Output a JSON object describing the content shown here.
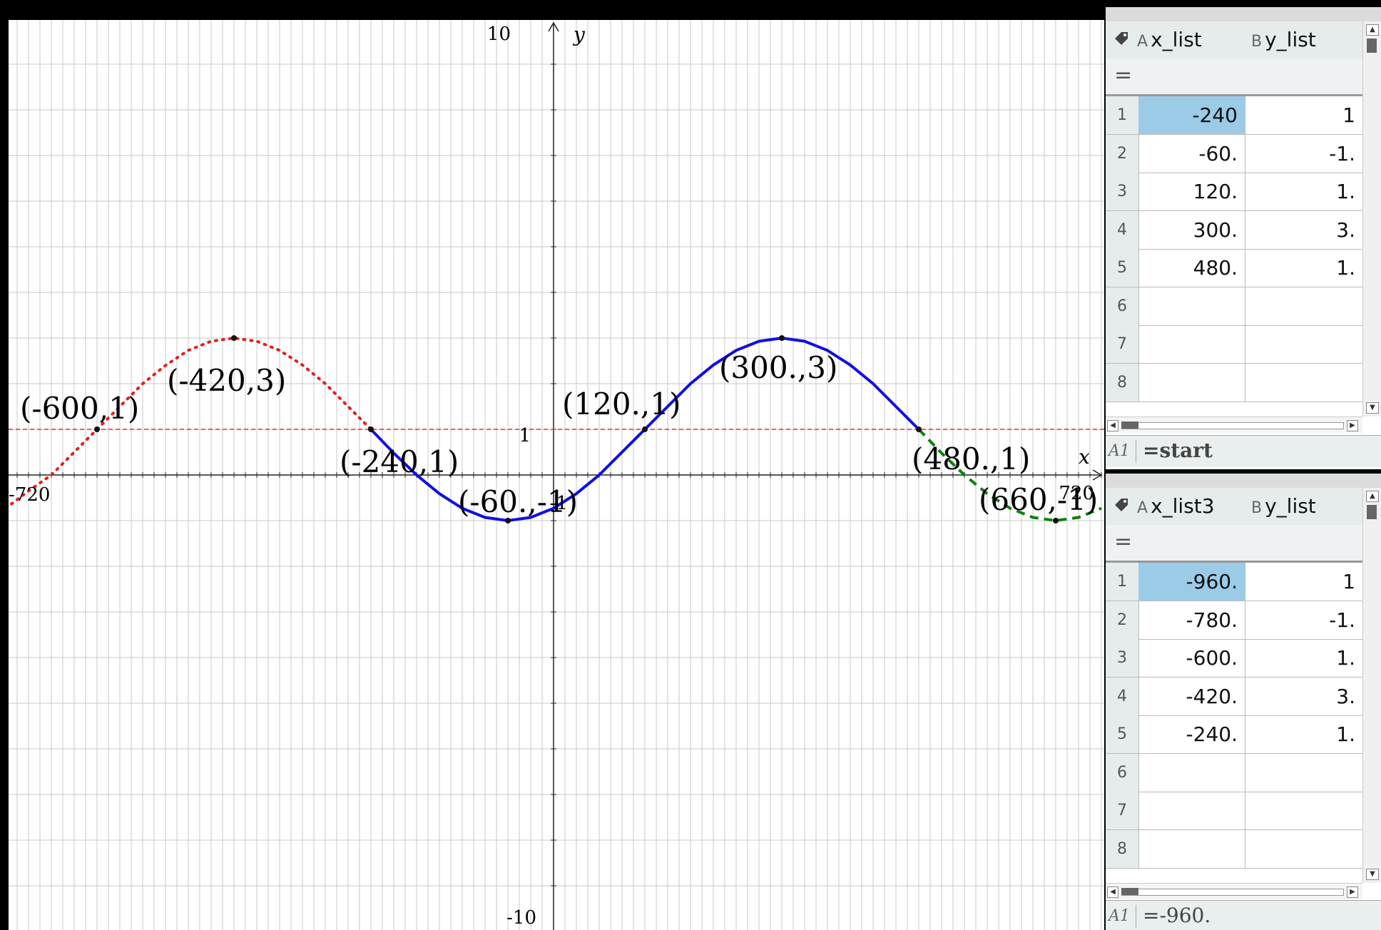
{
  "graph": {
    "axis_x_label": "x",
    "axis_y_label": "y",
    "ticks": {
      "y_max": "10",
      "y_min": "-10",
      "y_one": "1",
      "x_min": "-720",
      "x_max": "720",
      "y_minus_one_partial": "-1"
    },
    "colors": {
      "red": "#e02020",
      "blue": "#1010e0",
      "green": "#108010",
      "hline": "#e03030"
    },
    "point_labels": [
      {
        "text": "(-600,1)"
      },
      {
        "text": "(-420,3)"
      },
      {
        "text": "(-240,1)"
      },
      {
        "text": "(-60.,-1)"
      },
      {
        "text": "(120.,1)"
      },
      {
        "text": "(300.,3)"
      },
      {
        "text": "(480.,1)"
      },
      {
        "text": "(660,-1)"
      }
    ]
  },
  "chart_data": {
    "type": "line",
    "xlim": [
      -720,
      720
    ],
    "ylim": [
      -10,
      10
    ],
    "grid": true,
    "horizontal_line": {
      "y": 1,
      "style": "dashed",
      "color": "#e03030"
    },
    "series": [
      {
        "style": "dotted",
        "color": "#e02020",
        "x": [
          -720,
          -690,
          -660,
          -630,
          -600,
          -570,
          -540,
          -510,
          -480,
          -450,
          -420,
          -390,
          -360,
          -330,
          -300,
          -270,
          -240
        ],
        "y": [
          -0.73,
          -0.35,
          0.0,
          0.5,
          1.0,
          1.5,
          2.0,
          2.4,
          2.73,
          2.93,
          3.0,
          2.93,
          2.73,
          2.41,
          2.0,
          1.5,
          1.0
        ]
      },
      {
        "style": "solid",
        "color": "#1010e0",
        "x": [
          -240,
          -210,
          -180,
          -150,
          -120,
          -90,
          -60,
          -30,
          0,
          30,
          60,
          90,
          120,
          150,
          180,
          210,
          240,
          270,
          300,
          330,
          360,
          390,
          420,
          450,
          480
        ],
        "y": [
          1.0,
          0.48,
          0.0,
          -0.41,
          -0.73,
          -0.93,
          -1.0,
          -0.93,
          -0.73,
          -0.41,
          0.0,
          0.5,
          1.0,
          1.5,
          2.0,
          2.41,
          2.73,
          2.93,
          3.0,
          2.93,
          2.73,
          2.41,
          2.0,
          1.5,
          1.0
        ]
      },
      {
        "style": "dashed",
        "color": "#108010",
        "x": [
          480,
          510,
          540,
          570,
          600,
          630,
          660,
          690,
          720
        ],
        "y": [
          1.0,
          0.48,
          0.0,
          -0.41,
          -0.73,
          -0.93,
          -1.0,
          -0.93,
          -0.73
        ]
      }
    ],
    "points": [
      {
        "x": -600,
        "y": 1
      },
      {
        "x": -420,
        "y": 3
      },
      {
        "x": -240,
        "y": 1
      },
      {
        "x": -60,
        "y": -1
      },
      {
        "x": 120,
        "y": 1
      },
      {
        "x": 300,
        "y": 3
      },
      {
        "x": 480,
        "y": 1
      },
      {
        "x": 660,
        "y": -1
      }
    ]
  },
  "sheet1": {
    "col_a_letter": "A",
    "col_a_name": "x_list",
    "col_b_letter": "B",
    "col_b_name": "y_list",
    "eq_symbol": "=",
    "rows": [
      {
        "n": "1",
        "a": "-240",
        "b": "1"
      },
      {
        "n": "2",
        "a": "-60.",
        "b": "-1."
      },
      {
        "n": "3",
        "a": "120.",
        "b": "1."
      },
      {
        "n": "4",
        "a": "300.",
        "b": "3."
      },
      {
        "n": "5",
        "a": "480.",
        "b": "1."
      },
      {
        "n": "6",
        "a": "",
        "b": ""
      },
      {
        "n": "7",
        "a": "",
        "b": ""
      },
      {
        "n": "8",
        "a": "",
        "b": ""
      }
    ],
    "formula_cell": "A1",
    "formula_expr": "=start"
  },
  "sheet2": {
    "col_a_letter": "A",
    "col_a_name": "x_list3",
    "col_b_letter": "B",
    "col_b_name": "y_list",
    "eq_symbol": "=",
    "rows": [
      {
        "n": "1",
        "a": "-960.",
        "b": "1"
      },
      {
        "n": "2",
        "a": "-780.",
        "b": "-1."
      },
      {
        "n": "3",
        "a": "-600.",
        "b": "1."
      },
      {
        "n": "4",
        "a": "-420.",
        "b": "3."
      },
      {
        "n": "5",
        "a": "-240.",
        "b": "1."
      },
      {
        "n": "6",
        "a": "",
        "b": ""
      },
      {
        "n": "7",
        "a": "",
        "b": ""
      },
      {
        "n": "8",
        "a": "",
        "b": ""
      }
    ],
    "formula_cell": "A1",
    "formula_expr": "=-960."
  }
}
